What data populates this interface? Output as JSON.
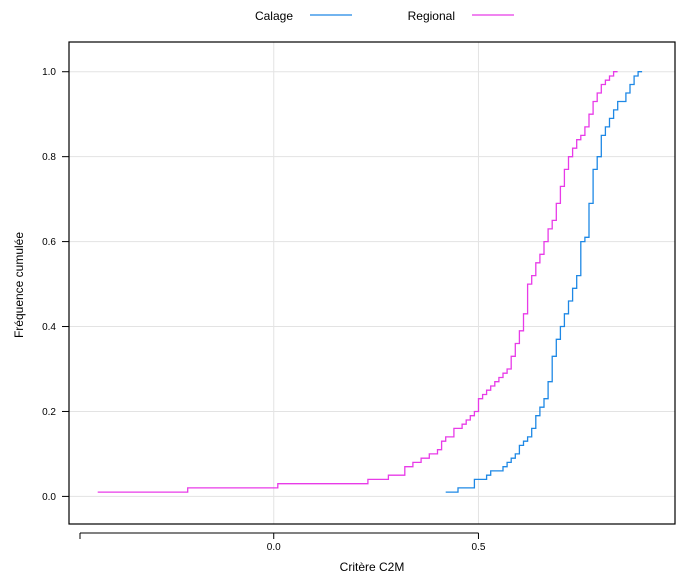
{
  "chart_data": {
    "type": "line",
    "step": true,
    "xlabel": "Critère C2M",
    "ylabel": "Fréquence cumulée",
    "xlim": [
      -0.5,
      0.98
    ],
    "ylim": [
      -0.065,
      1.07
    ],
    "x_ticks": [
      0.0,
      0.5
    ],
    "x_tick_labels": [
      "0.0",
      "0.5"
    ],
    "y_ticks": [
      0.0,
      0.2,
      0.4,
      0.6,
      0.8,
      1.0
    ],
    "y_tick_labels": [
      "0.0",
      "0.2",
      "0.4",
      "0.6",
      "0.8",
      "1.0"
    ],
    "grid": true,
    "legend_position": "top",
    "series": [
      {
        "name": "Calage",
        "color": "#1e88e5",
        "x": [
          0.42,
          0.45,
          0.47,
          0.49,
          0.51,
          0.52,
          0.53,
          0.54,
          0.56,
          0.57,
          0.58,
          0.59,
          0.6,
          0.61,
          0.62,
          0.63,
          0.64,
          0.65,
          0.66,
          0.67,
          0.68,
          0.69,
          0.7,
          0.71,
          0.72,
          0.73,
          0.74,
          0.75,
          0.76,
          0.77,
          0.78,
          0.79,
          0.8,
          0.81,
          0.82,
          0.83,
          0.84,
          0.86,
          0.87,
          0.88,
          0.89
        ],
        "y": [
          0.01,
          0.02,
          0.02,
          0.04,
          0.04,
          0.05,
          0.06,
          0.06,
          0.07,
          0.08,
          0.09,
          0.1,
          0.12,
          0.13,
          0.14,
          0.16,
          0.19,
          0.21,
          0.23,
          0.27,
          0.33,
          0.37,
          0.4,
          0.43,
          0.46,
          0.49,
          0.52,
          0.6,
          0.61,
          0.69,
          0.77,
          0.8,
          0.85,
          0.87,
          0.89,
          0.91,
          0.93,
          0.95,
          0.97,
          0.99,
          1.0
        ]
      },
      {
        "name": "Regional",
        "color": "#e83be8",
        "x": [
          -0.43,
          -0.21,
          0.01,
          0.23,
          0.28,
          0.32,
          0.34,
          0.36,
          0.38,
          0.4,
          0.41,
          0.42,
          0.44,
          0.45,
          0.46,
          0.47,
          0.48,
          0.49,
          0.5,
          0.51,
          0.52,
          0.53,
          0.54,
          0.55,
          0.56,
          0.57,
          0.58,
          0.59,
          0.6,
          0.61,
          0.62,
          0.63,
          0.64,
          0.65,
          0.66,
          0.67,
          0.68,
          0.69,
          0.7,
          0.71,
          0.72,
          0.73,
          0.74,
          0.75,
          0.76,
          0.77,
          0.78,
          0.79,
          0.8,
          0.81,
          0.82,
          0.83
        ],
        "y": [
          0.01,
          0.02,
          0.03,
          0.04,
          0.05,
          0.07,
          0.08,
          0.09,
          0.1,
          0.11,
          0.13,
          0.14,
          0.16,
          0.16,
          0.17,
          0.18,
          0.19,
          0.2,
          0.23,
          0.24,
          0.25,
          0.26,
          0.27,
          0.28,
          0.29,
          0.3,
          0.33,
          0.36,
          0.39,
          0.43,
          0.5,
          0.52,
          0.55,
          0.57,
          0.6,
          0.63,
          0.65,
          0.69,
          0.73,
          0.77,
          0.8,
          0.82,
          0.84,
          0.85,
          0.87,
          0.9,
          0.93,
          0.95,
          0.97,
          0.98,
          0.99,
          1.0
        ]
      }
    ]
  }
}
